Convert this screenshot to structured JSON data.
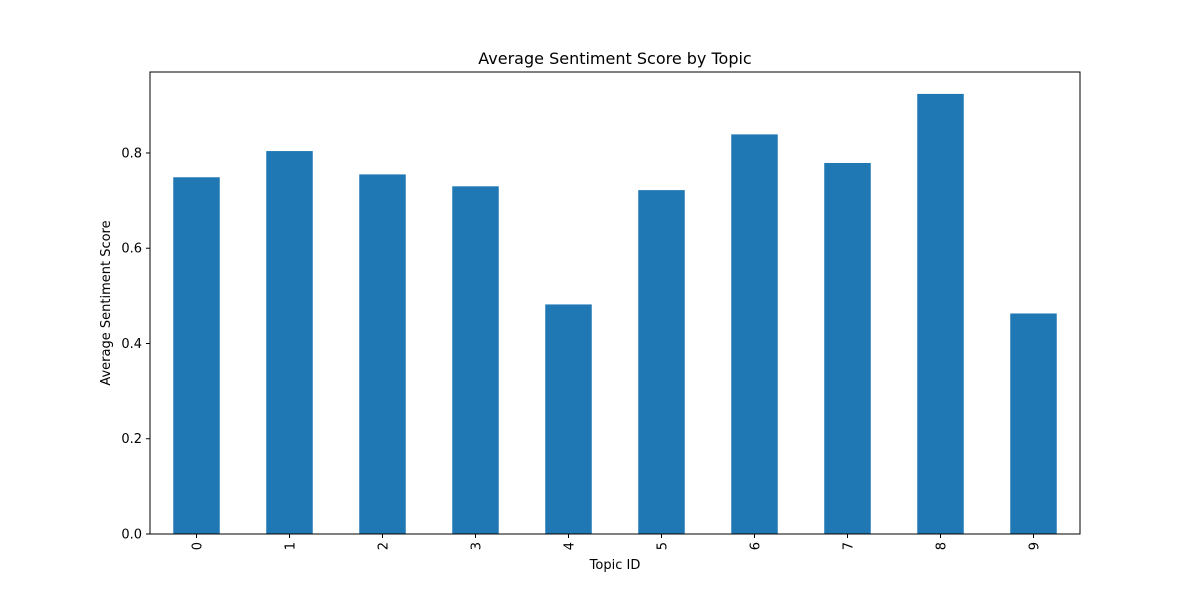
{
  "chart_data": {
    "type": "bar",
    "title": "Average Sentiment Score by Topic",
    "xlabel": "Topic ID",
    "ylabel": "Average Sentiment Score",
    "categories": [
      "0",
      "1",
      "2",
      "3",
      "4",
      "5",
      "6",
      "7",
      "8",
      "9"
    ],
    "values": [
      0.749,
      0.804,
      0.755,
      0.73,
      0.482,
      0.722,
      0.839,
      0.779,
      0.924,
      0.463
    ],
    "ylim": [
      0,
      0.97
    ],
    "yticks": [
      0.0,
      0.2,
      0.4,
      0.6,
      0.8
    ],
    "ytick_labels": [
      "0.0",
      "0.2",
      "0.4",
      "0.6",
      "0.8"
    ],
    "bar_color": "#1f77b4",
    "grid": false,
    "legend": "none"
  }
}
